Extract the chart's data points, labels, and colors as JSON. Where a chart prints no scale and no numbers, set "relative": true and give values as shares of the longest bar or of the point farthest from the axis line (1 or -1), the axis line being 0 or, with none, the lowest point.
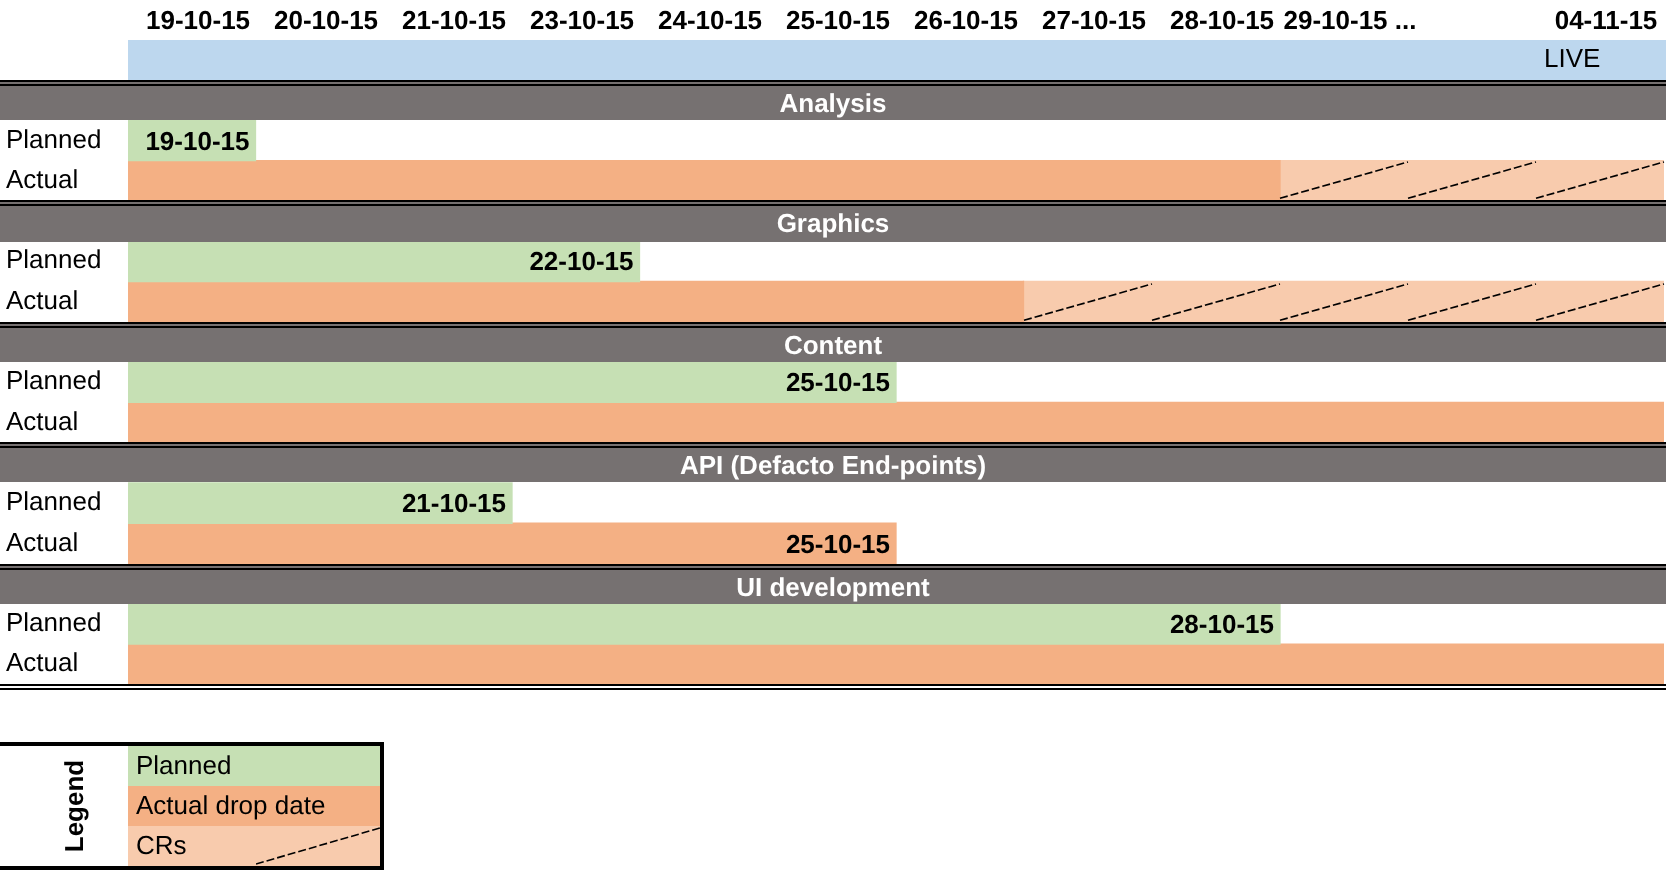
{
  "chart_data": {
    "type": "bar",
    "orientation": "horizontal",
    "stacked": true,
    "relative": true,
    "categories": [
      "Analysis",
      "Planned",
      "Actual",
      "Graphics",
      "Planned",
      "Actual",
      "Content",
      "Planned",
      "Actual",
      "API (Defacto End-points)",
      "Planned",
      "Actual",
      "UI development",
      "Planned",
      "Actual"
    ],
    "series": [
      {
        "name": "Planned",
        "color": "#c6e0b4",
        "values": [
          null,
          0.083,
          null,
          null,
          0.333,
          null,
          null,
          0.5,
          null,
          null,
          0.25,
          null,
          null,
          0.75,
          null
        ]
      },
      {
        "name": "Actual drop date",
        "color": "#f4b084",
        "values": [
          null,
          null,
          0.75,
          null,
          null,
          0.583,
          null,
          null,
          1,
          null,
          null,
          0.5,
          null,
          null,
          1
        ]
      },
      {
        "name": "CRs",
        "color": "#f8cbad",
        "values": [
          null,
          null,
          0.25,
          null,
          null,
          0.417,
          null,
          null,
          null,
          null,
          null,
          null,
          null,
          null,
          null
        ]
      }
    ],
    "legend": "bottom left",
    "legend_title": "Legend",
    "annotations": [
      "19-10-15",
      "20-10-15",
      "21-10-15",
      "23-10-15",
      "24-10-15",
      "25-10-15",
      "26-10-15",
      "27-10-15",
      "28-10-15",
      "29-10-15 ...",
      "04-11-15",
      "LIVE",
      {
        "text": "19-10-15",
        "x": 0.083
      },
      {
        "text": "22-10-15",
        "x": 0.333
      },
      {
        "text": "25-10-15",
        "x": 0.5
      },
      {
        "text": "21-10-15",
        "x": 0.25
      },
      {
        "text": "25-10-15",
        "x": 0.5
      },
      {
        "text": "28-10-15",
        "x": 0.75
      }
    ]
  }
}
